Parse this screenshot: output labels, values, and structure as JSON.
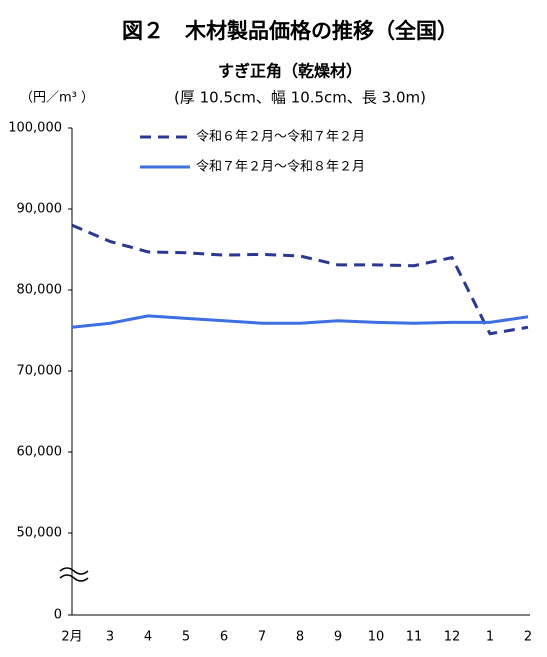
{
  "chart_data": {
    "type": "line",
    "title": "図２　木材製品価格の推移（全国）",
    "subtitle": "すぎ正角（乾燥材）",
    "subtitle2": "(厚 10.5cm、幅 10.5cm、長 3.0m)",
    "y_axis_label": "（円／m³ ）",
    "categories": [
      "2月",
      "3",
      "4",
      "5",
      "6",
      "7",
      "8",
      "9",
      "10",
      "11",
      "12",
      "1",
      "2"
    ],
    "series": [
      {
        "name": "令和６年２月～令和７年２月",
        "color": "#2b3890",
        "dash": true,
        "values": [
          88000,
          86000,
          84700,
          84600,
          84300,
          84400,
          84200,
          83100,
          83100,
          83000,
          84000,
          74600,
          75400
        ]
      },
      {
        "name": "令和７年２月～令和８年２月",
        "color": "#3d6fe3",
        "dash": false,
        "values": [
          75400,
          75900,
          76800,
          76500,
          76200,
          75900,
          75900,
          76200,
          76000,
          75900,
          76000,
          76000,
          76700
        ]
      }
    ],
    "ylim": [
      0,
      100000
    ],
    "yticks": [
      0,
      {
        "value": 50000,
        "label": "50,000"
      },
      {
        "value": 60000,
        "label": "60,000"
      },
      {
        "value": 70000,
        "label": "70,000"
      },
      {
        "value": 80000,
        "label": "80,000"
      },
      {
        "value": 90000,
        "label": "90,000"
      },
      {
        "value": 100000,
        "label": "100,000"
      }
    ],
    "axis_break": true,
    "grid": false
  }
}
